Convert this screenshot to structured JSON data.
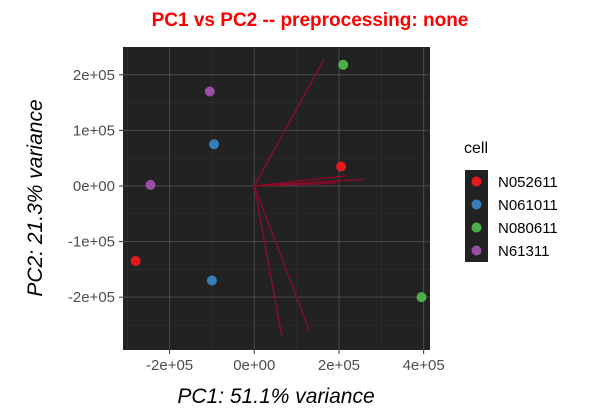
{
  "chart_data": {
    "type": "scatter",
    "title": "PC1 vs PC2 -- preprocessing: none",
    "title_color": "#ff0000",
    "xlabel": "PC1: 51.1% variance",
    "ylabel": "PC2: 21.3% variance",
    "xlim": [
      -310000,
      415000
    ],
    "ylim": [
      -295000,
      250000
    ],
    "x_ticks": [
      -200000,
      0,
      200000,
      400000
    ],
    "x_tick_labels": [
      "-2e+05",
      "0e+00",
      "2e+05",
      "4e+05"
    ],
    "y_ticks": [
      -200000,
      -100000,
      0,
      100000,
      200000
    ],
    "y_tick_labels": [
      "-2e+05",
      "-1e+05",
      "0e+00",
      "1e+05",
      "2e+05"
    ],
    "panel_background": "#222222",
    "grid": true,
    "legend": {
      "title": "cell",
      "position": "right",
      "background": "#222222",
      "entries": [
        {
          "label": "N052611",
          "color": "#e41a1c"
        },
        {
          "label": "N061011",
          "color": "#377eb8"
        },
        {
          "label": "N080611",
          "color": "#4daf4a"
        },
        {
          "label": "N61311",
          "color": "#984ea3"
        }
      ]
    },
    "series": [
      {
        "legend_index": 0,
        "points": [
          [
            205000,
            35000
          ],
          [
            -280000,
            -135000
          ]
        ]
      },
      {
        "legend_index": 1,
        "points": [
          [
            -95000,
            75000
          ],
          [
            -100000,
            -170000
          ]
        ]
      },
      {
        "legend_index": 2,
        "points": [
          [
            210000,
            218000
          ],
          [
            395000,
            -200000
          ]
        ]
      },
      {
        "legend_index": 3,
        "points": [
          [
            -105000,
            170000
          ],
          [
            -245000,
            2000
          ]
        ]
      }
    ],
    "loading_color": "#8b0a2a",
    "loadings": [
      [
        165000,
        228000
      ],
      [
        260000,
        12000
      ],
      [
        215000,
        18000
      ],
      [
        195000,
        5000
      ],
      [
        130000,
        -260000
      ],
      [
        65000,
        -270000
      ]
    ]
  }
}
